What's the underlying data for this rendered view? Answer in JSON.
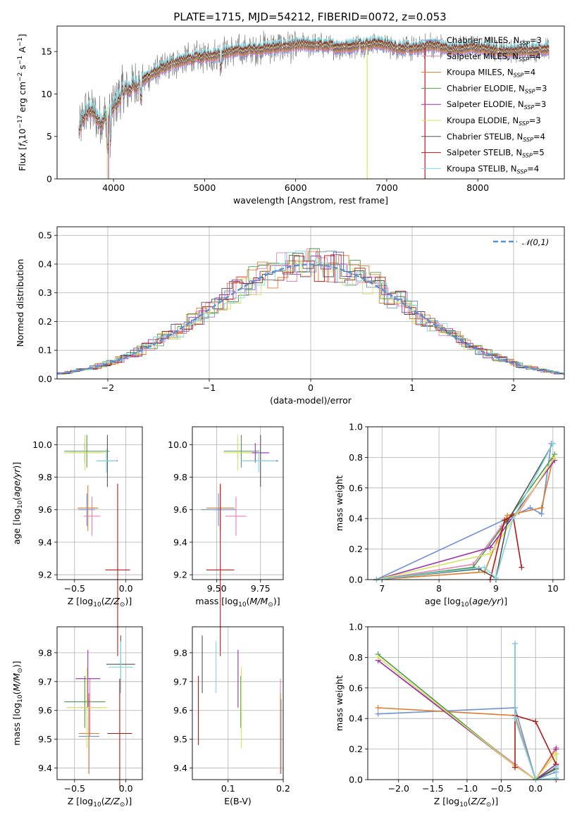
{
  "figure_title": "PLATE=1715, MJD=54212, FIBERID=0072, z=0.053",
  "colors": {
    "chabrier_miles": "#6f8fd6",
    "salpeter_miles": "#e87fb6",
    "kroupa_miles": "#e07d2c",
    "chabrier_elodie": "#4f9a4f",
    "salpeter_elodie": "#9b2fae",
    "kroupa_elodie": "#d4e35f",
    "chabrier_stelib": "#555555",
    "salpeter_stelib": "#b01818",
    "kroupa_stelib": "#7fd8e0",
    "data": "#808080",
    "normal": "#5a8fd6"
  },
  "chart_data": [
    {
      "id": "spectrum",
      "type": "line",
      "xlabel": "wavelength [Angstrom, rest frame]",
      "ylabel": "Flux [f_λ10^-17 erg cm^-2 s^-1 A^-1]",
      "xlim": [
        3380,
        8950
      ],
      "ylim": [
        0,
        18
      ],
      "xticks": [
        4000,
        5000,
        6000,
        7000,
        8000
      ],
      "yticks": [
        0,
        5,
        10,
        15
      ],
      "grid": false,
      "legend_position": "upper-right",
      "spectrum_x": [
        3620,
        3680,
        3750,
        3850,
        3950,
        4100,
        4300,
        4500,
        4700,
        4900,
        5100,
        5300,
        5500,
        5700,
        5900,
        6100,
        6300,
        6500,
        6700,
        6900,
        7100,
        7300,
        7500,
        7700,
        7900,
        8100,
        8300,
        8500,
        8700
      ],
      "spectrum_y": [
        5.5,
        7.5,
        8.2,
        6.8,
        7.5,
        10.2,
        11.5,
        12.8,
        13.8,
        14.2,
        14.6,
        15.0,
        15.2,
        15.4,
        15.6,
        15.8,
        15.7,
        15.5,
        15.8,
        16.0,
        15.5,
        15.3,
        15.8,
        15.2,
        15.5,
        15.3,
        15.0,
        15.1,
        15.3
      ],
      "series": [
        {
          "name": "Chabrier MILES, N_SSP=3",
          "color_key": "chabrier_miles"
        },
        {
          "name": "Salpeter MILES, N_SSP=4",
          "color_key": "salpeter_miles"
        },
        {
          "name": "Kroupa MILES, N_SSP=4",
          "color_key": "kroupa_miles"
        },
        {
          "name": "Chabrier ELODIE, N_SSP=3",
          "color_key": "chabrier_elodie"
        },
        {
          "name": "Salpeter ELODIE, N_SSP=3",
          "color_key": "salpeter_elodie"
        },
        {
          "name": "Kroupa ELODIE, N_SSP=3",
          "color_key": "kroupa_elodie"
        },
        {
          "name": "Chabrier STELIB, N_SSP=4",
          "color_key": "chabrier_stelib"
        },
        {
          "name": "Salpeter STELIB, N_SSP=5",
          "color_key": "salpeter_stelib"
        },
        {
          "name": "Kroupa STELIB, N_SSP=4",
          "color_key": "kroupa_stelib"
        }
      ]
    },
    {
      "id": "residuals",
      "type": "step",
      "xlabel": "(data-model)/error",
      "ylabel": "Normed distribution",
      "xlim": [
        -2.5,
        2.5
      ],
      "ylim": [
        0,
        0.53
      ],
      "xticks": [
        -2,
        -1,
        0,
        1,
        2
      ],
      "yticks": [
        0.0,
        0.1,
        0.2,
        0.3,
        0.4,
        0.5
      ],
      "grid": true,
      "legend_position": "upper-right",
      "normal_label": "𝒩(0,1)",
      "histogram_bin_width": 0.1
    },
    {
      "id": "age_vs_Z",
      "type": "errorbar",
      "xlabel": "Z [log10(Z/Z⊙)]",
      "ylabel": "age  [log10(age/yr)]",
      "xlim": [
        -0.67,
        0.16
      ],
      "ylim": [
        9.17,
        10.11
      ],
      "xticks": [
        -0.5,
        0.0
      ],
      "yticks": [
        9.2,
        9.4,
        9.6,
        9.8,
        10.0
      ],
      "grid": true,
      "points": [
        {
          "color_key": "chabrier_miles",
          "x": -0.38,
          "y": 9.6,
          "xerr": 0.08,
          "yerr": 0.1
        },
        {
          "color_key": "salpeter_miles",
          "x": -0.33,
          "y": 9.56,
          "xerr": 0.08,
          "yerr": 0.12
        },
        {
          "color_key": "kroupa_miles",
          "x": -0.37,
          "y": 9.61,
          "xerr": 0.1,
          "yerr": 0.14
        },
        {
          "color_key": "chabrier_elodie",
          "x": -0.38,
          "y": 9.96,
          "xerr": 0.22,
          "yerr": 0.1
        },
        {
          "color_key": "salpeter_elodie",
          "x": -0.4,
          "y": 9.95,
          "xerr": 0.16,
          "yerr": 0.06
        },
        {
          "color_key": "kroupa_elodie",
          "x": -0.4,
          "y": 9.95,
          "xerr": 0.2,
          "yerr": 0.11
        },
        {
          "color_key": "chabrier_stelib",
          "x": -0.18,
          "y": 9.9,
          "xerr": 0.1,
          "yerr": 0.16
        },
        {
          "color_key": "salpeter_stelib",
          "x": -0.08,
          "y": 9.23,
          "xerr": 0.12,
          "yerr": 0.53
        },
        {
          "color_key": "kroupa_stelib",
          "x": -0.19,
          "y": 9.9,
          "xerr": 0.1,
          "yerr": 0.07
        }
      ]
    },
    {
      "id": "age_vs_mass",
      "type": "errorbar",
      "xlabel": "mass [log10(M/M⊙)]",
      "ylabel": "",
      "xlim": [
        9.36,
        9.88
      ],
      "ylim": [
        9.17,
        10.11
      ],
      "xticks": [
        9.5,
        9.75
      ],
      "yticks": [
        9.2,
        9.4,
        9.6,
        9.8,
        10.0
      ],
      "grid": true,
      "points": [
        {
          "color_key": "chabrier_miles",
          "x": 9.51,
          "y": 9.6,
          "xerr": 0.1,
          "yerr": 0.1
        },
        {
          "color_key": "salpeter_miles",
          "x": 9.61,
          "y": 9.56,
          "xerr": 0.06,
          "yerr": 0.12
        },
        {
          "color_key": "kroupa_miles",
          "x": 9.52,
          "y": 9.61,
          "xerr": 0.08,
          "yerr": 0.14
        },
        {
          "color_key": "chabrier_elodie",
          "x": 9.64,
          "y": 9.96,
          "xerr": 0.1,
          "yerr": 0.1
        },
        {
          "color_key": "salpeter_elodie",
          "x": 9.72,
          "y": 9.95,
          "xerr": 0.08,
          "yerr": 0.06
        },
        {
          "color_key": "kroupa_elodie",
          "x": 9.62,
          "y": 9.95,
          "xerr": 0.08,
          "yerr": 0.11
        },
        {
          "color_key": "chabrier_stelib",
          "x": 9.75,
          "y": 9.9,
          "xerr": 0.1,
          "yerr": 0.16
        },
        {
          "color_key": "salpeter_stelib",
          "x": 9.52,
          "y": 9.23,
          "xerr": 0.08,
          "yerr": 0.53
        },
        {
          "color_key": "kroupa_stelib",
          "x": 9.74,
          "y": 9.9,
          "xerr": 0.1,
          "yerr": 0.07
        }
      ]
    },
    {
      "id": "mass_weight_vs_age",
      "type": "line",
      "xlabel": "age  [log10(age/yr)]",
      "ylabel": "mass weight",
      "xlim": [
        6.75,
        10.2
      ],
      "ylim": [
        0,
        1
      ],
      "xticks": [
        7,
        8,
        9,
        10
      ],
      "yticks": [
        0.0,
        0.2,
        0.4,
        0.6,
        0.8,
        1.0
      ],
      "grid": true,
      "series": [
        {
          "color_key": "chabrier_miles",
          "x": [
            6.9,
            9.6,
            9.8,
            9.97
          ],
          "y": [
            0.0,
            0.47,
            0.43,
            0.89
          ]
        },
        {
          "color_key": "salpeter_miles",
          "x": [
            6.9,
            8.6,
            9.1,
            9.4,
            10.0
          ],
          "y": [
            0.0,
            0.1,
            0.35,
            0.44,
            0.78
          ]
        },
        {
          "color_key": "kroupa_miles",
          "x": [
            6.9,
            8.8,
            9.2,
            9.8,
            10.0
          ],
          "y": [
            0.0,
            0.05,
            0.42,
            0.47,
            0.79
          ]
        },
        {
          "color_key": "chabrier_elodie",
          "x": [
            6.9,
            8.6,
            10.03
          ],
          "y": [
            0.0,
            0.08,
            0.82
          ]
        },
        {
          "color_key": "salpeter_elodie",
          "x": [
            6.9,
            8.9,
            10.03
          ],
          "y": [
            0.0,
            0.21,
            0.78
          ]
        },
        {
          "color_key": "kroupa_elodie",
          "x": [
            6.9,
            8.9,
            10.03
          ],
          "y": [
            0.0,
            0.17,
            0.8
          ]
        },
        {
          "color_key": "chabrier_stelib",
          "x": [
            6.9,
            8.7,
            9.0,
            9.2,
            10.0
          ],
          "y": [
            0.0,
            0.07,
            0.01,
            0.38,
            0.89
          ]
        },
        {
          "color_key": "salpeter_stelib",
          "x": [
            8.9,
            9.15,
            9.3,
            9.45
          ],
          "y": [
            0.0,
            0.39,
            0.42,
            0.08
          ]
        },
        {
          "color_key": "kroupa_stelib",
          "x": [
            6.9,
            8.8,
            9.0,
            9.3,
            10.0
          ],
          "y": [
            0.0,
            0.08,
            0.01,
            0.4,
            0.89
          ]
        }
      ]
    },
    {
      "id": "mass_vs_Z",
      "type": "errorbar",
      "xlabel": "Z [log10(Z/Z⊙)]",
      "ylabel": "mass [log10(M/M⊙)]",
      "xlim": [
        -0.67,
        0.16
      ],
      "ylim": [
        9.36,
        9.89
      ],
      "xticks": [
        -0.5,
        0.0
      ],
      "yticks": [
        9.4,
        9.5,
        9.6,
        9.7,
        9.8
      ],
      "grid": true,
      "points": [
        {
          "color_key": "chabrier_miles",
          "x": -0.36,
          "y": 9.51,
          "xerr": 0.1,
          "yerr": 0.13
        },
        {
          "color_key": "salpeter_miles",
          "x": -0.35,
          "y": 9.61,
          "xerr": 0.1,
          "yerr": 0.1
        },
        {
          "color_key": "kroupa_miles",
          "x": -0.36,
          "y": 9.52,
          "xerr": 0.1,
          "yerr": 0.14
        },
        {
          "color_key": "chabrier_elodie",
          "x": -0.4,
          "y": 9.63,
          "xerr": 0.2,
          "yerr": 0.09
        },
        {
          "color_key": "salpeter_elodie",
          "x": -0.37,
          "y": 9.71,
          "xerr": 0.12,
          "yerr": 0.1
        },
        {
          "color_key": "kroupa_elodie",
          "x": -0.38,
          "y": 9.61,
          "xerr": 0.2,
          "yerr": 0.14
        },
        {
          "color_key": "chabrier_stelib",
          "x": -0.05,
          "y": 9.76,
          "xerr": 0.14,
          "yerr": 0.1
        },
        {
          "color_key": "salpeter_stelib",
          "x": -0.06,
          "y": 9.52,
          "xerr": 0.12,
          "yerr": 0.19
        },
        {
          "color_key": "kroupa_stelib",
          "x": -0.05,
          "y": 9.75,
          "xerr": 0.12,
          "yerr": 0.09
        }
      ]
    },
    {
      "id": "mass_vs_ebv",
      "type": "errorbar",
      "xlabel": "E(B-V)",
      "ylabel": "",
      "xlim": [
        0.035,
        0.2
      ],
      "ylim": [
        9.36,
        9.89
      ],
      "xticks": [
        0.1,
        0.2
      ],
      "yticks": [
        9.4,
        9.5,
        9.6,
        9.7,
        9.8
      ],
      "grid": true,
      "points": [
        {
          "color_key": "chabrier_miles",
          "x": 0.196,
          "y": 9.51,
          "xerr": 0.0,
          "yerr": 0.13
        },
        {
          "color_key": "salpeter_miles",
          "x": 0.195,
          "y": 9.61,
          "xerr": 0.0,
          "yerr": 0.1
        },
        {
          "color_key": "kroupa_miles",
          "x": 0.195,
          "y": 9.52,
          "xerr": 0.0,
          "yerr": 0.14
        },
        {
          "color_key": "chabrier_elodie",
          "x": 0.123,
          "y": 9.63,
          "xerr": 0.0,
          "yerr": 0.09
        },
        {
          "color_key": "salpeter_elodie",
          "x": 0.118,
          "y": 9.71,
          "xerr": 0.0,
          "yerr": 0.1
        },
        {
          "color_key": "kroupa_elodie",
          "x": 0.124,
          "y": 9.61,
          "xerr": 0.0,
          "yerr": 0.14
        },
        {
          "color_key": "chabrier_stelib",
          "x": 0.053,
          "y": 9.76,
          "xerr": 0.0,
          "yerr": 0.1
        },
        {
          "color_key": "salpeter_stelib",
          "x": 0.046,
          "y": 9.6,
          "xerr": 0.0,
          "yerr": 0.12
        },
        {
          "color_key": "kroupa_stelib",
          "x": 0.078,
          "y": 9.75,
          "xerr": 0.0,
          "yerr": 0.09
        }
      ]
    },
    {
      "id": "mass_weight_vs_Z",
      "type": "line",
      "xlabel": "Z [log10(Z/Z⊙)]",
      "ylabel": "mass weight",
      "xlim": [
        -2.45,
        0.42
      ],
      "ylim": [
        0,
        1
      ],
      "xticks": [
        -2.0,
        -1.5,
        -1.0,
        -0.5,
        0.0
      ],
      "yticks": [
        0.0,
        0.2,
        0.4,
        0.6,
        0.8,
        1.0
      ],
      "grid": true,
      "series": [
        {
          "color_key": "chabrier_miles",
          "x": [
            -2.3,
            -0.3,
            0.0,
            0.3,
            0.3
          ],
          "y": [
            0.43,
            0.47,
            0.0,
            0.05,
            0.09
          ]
        },
        {
          "color_key": "salpeter_miles",
          "x": [
            -2.3,
            -0.3,
            0.0,
            0.3,
            0.3
          ],
          "y": [
            0.78,
            0.1,
            0.0,
            0.21,
            0.1
          ]
        },
        {
          "color_key": "kroupa_miles",
          "x": [
            -2.3,
            -0.3,
            0.0,
            0.3,
            0.3
          ],
          "y": [
            0.47,
            0.42,
            0.0,
            0.2,
            0.1
          ]
        },
        {
          "color_key": "chabrier_elodie",
          "x": [
            -2.3,
            -0.3,
            0.0,
            0.3,
            0.3
          ],
          "y": [
            0.82,
            0.09,
            0.0,
            0.08,
            0.17
          ]
        },
        {
          "color_key": "salpeter_elodie",
          "x": [
            -2.3,
            -0.3,
            0.0,
            0.3,
            0.3
          ],
          "y": [
            0.78,
            0.09,
            0.0,
            0.1,
            0.2
          ]
        },
        {
          "color_key": "kroupa_elodie",
          "x": [
            -2.3,
            -0.3,
            0.0,
            0.3,
            0.3
          ],
          "y": [
            0.8,
            0.09,
            0.0,
            0.17,
            0.08
          ]
        },
        {
          "color_key": "chabrier_stelib",
          "x": [
            -0.3,
            -0.3,
            0.0,
            0.3,
            0.3
          ],
          "y": [
            0.89,
            0.4,
            0.0,
            0.07,
            0.01
          ]
        },
        {
          "color_key": "salpeter_stelib",
          "x": [
            -0.3,
            -0.3,
            0.0,
            0.3,
            0.3
          ],
          "y": [
            0.08,
            0.42,
            0.38,
            0.1,
            0.0
          ]
        },
        {
          "color_key": "kroupa_stelib",
          "x": [
            -0.3,
            -0.3,
            0.0,
            0.3,
            0.3
          ],
          "y": [
            0.89,
            0.4,
            0.0,
            0.01,
            0.08
          ]
        }
      ]
    }
  ]
}
